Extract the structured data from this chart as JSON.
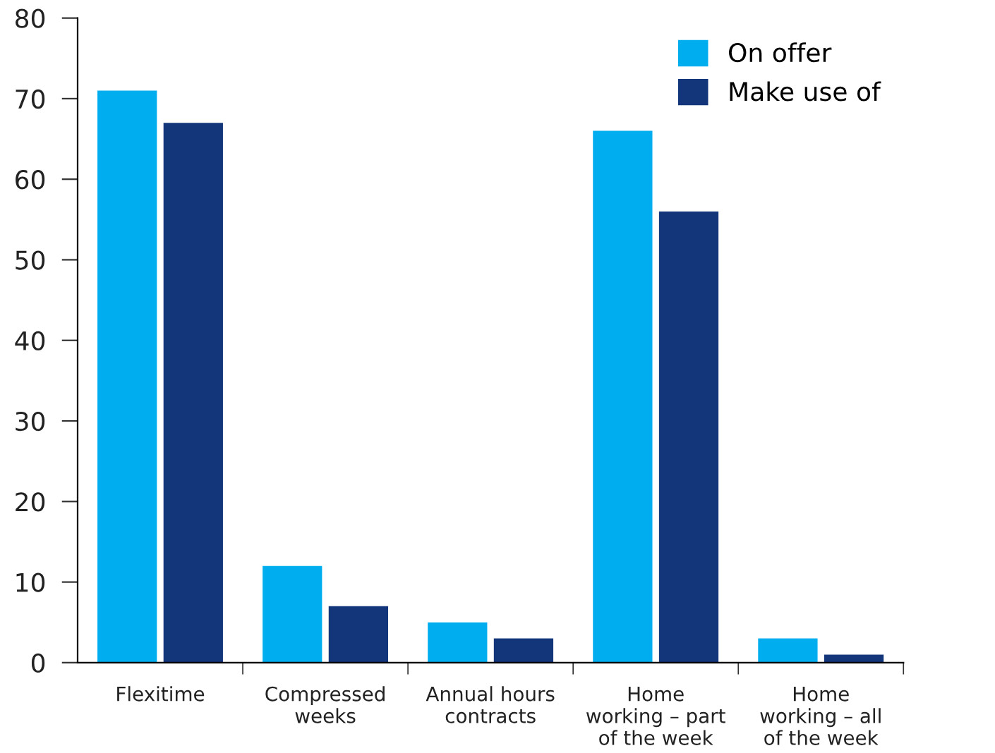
{
  "chart_data": {
    "type": "bar",
    "categories": [
      "Flexitime",
      "Compressed\nweeks",
      "Annual hours\ncontracts",
      "Home\nworking – part\nof the week",
      "Home\nworking – all\nof the week"
    ],
    "series": [
      {
        "name": "On offer",
        "color": "#00aeef",
        "values": [
          71,
          12,
          5,
          66,
          3
        ]
      },
      {
        "name": "Make use of",
        "color": "#13357a",
        "values": [
          67,
          7,
          3,
          56,
          1
        ]
      }
    ],
    "ylim": [
      0,
      80
    ],
    "yticks": [
      0,
      10,
      20,
      30,
      40,
      50,
      60,
      70,
      80
    ],
    "legend": "top right",
    "grid": false
  }
}
